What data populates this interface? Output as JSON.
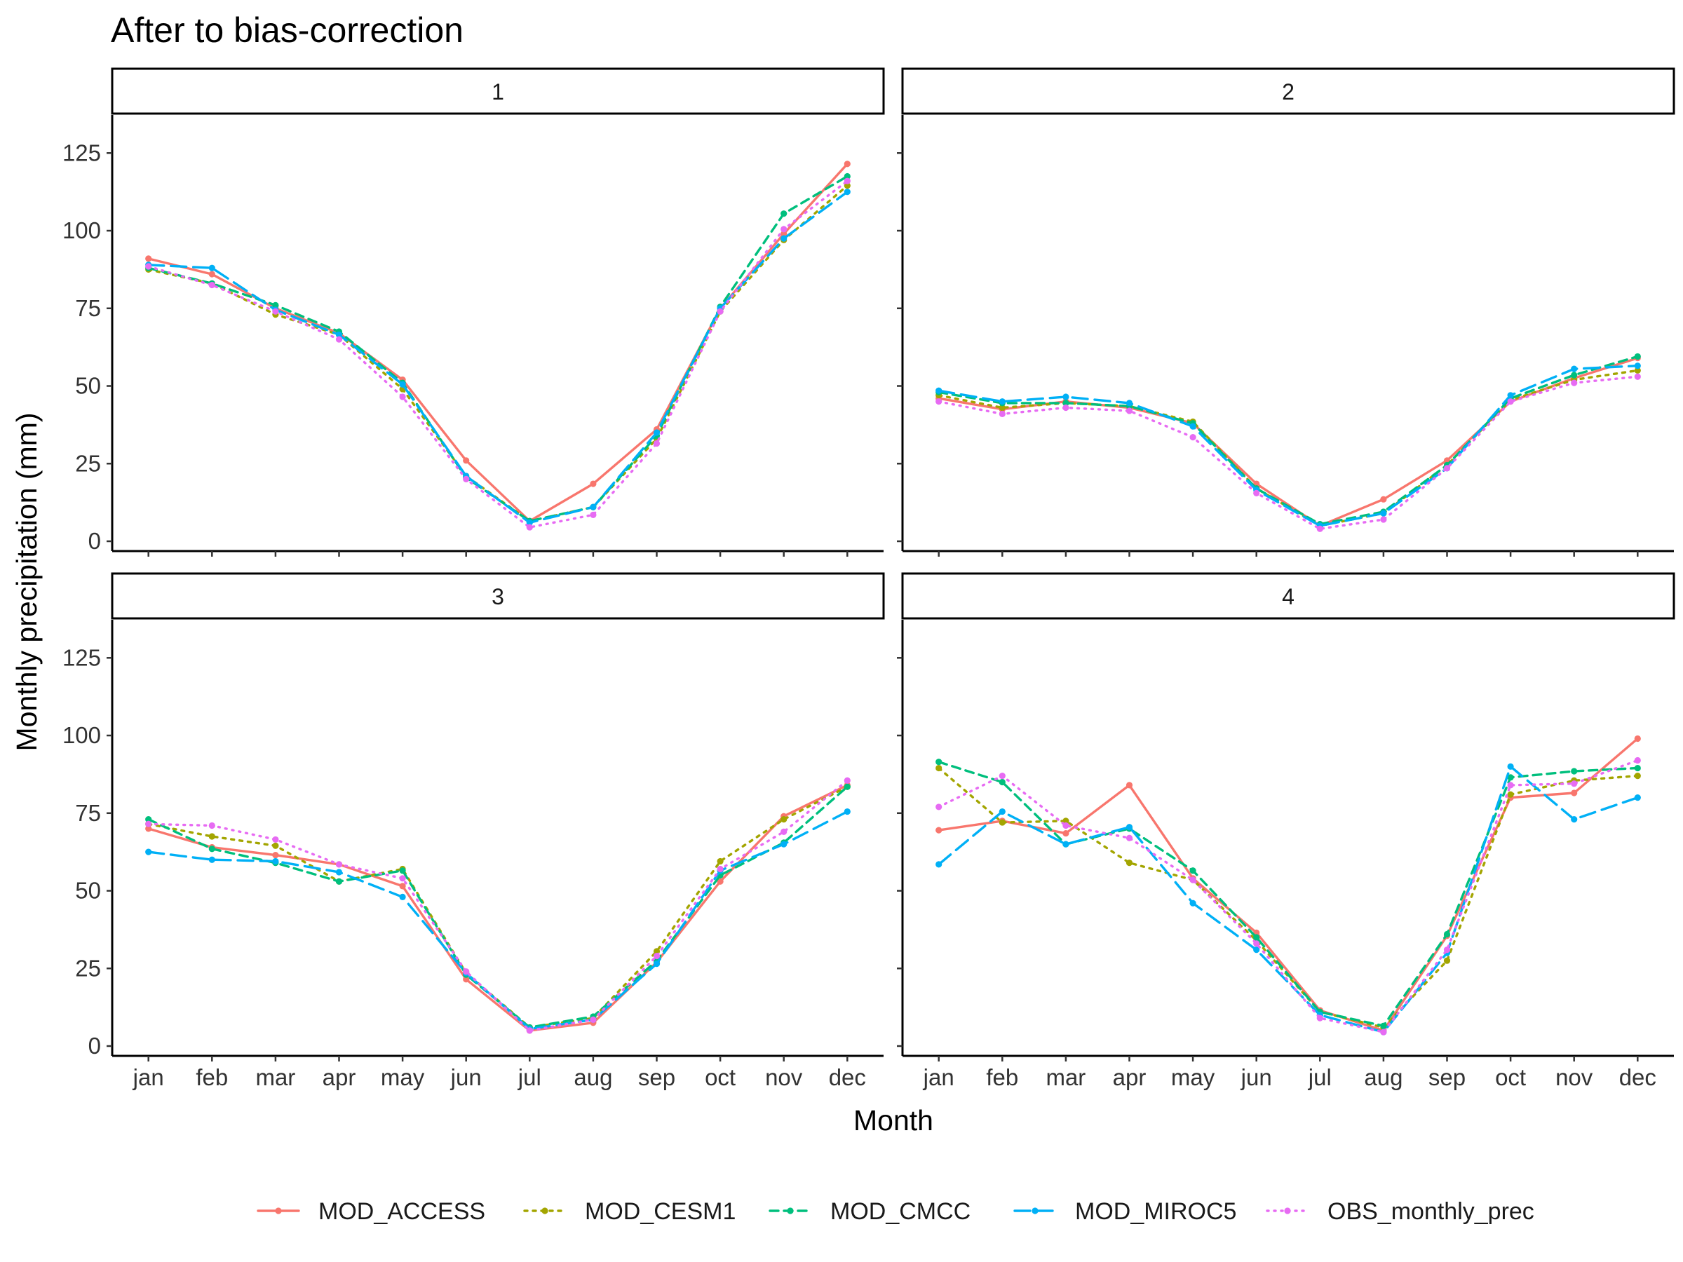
{
  "chart_data": {
    "type": "line",
    "title": "After to bias-correction",
    "xlabel": "Month",
    "ylabel": "Monthly precipitation (mm)",
    "ylim": [
      0,
      135
    ],
    "yticks": [
      0,
      25,
      50,
      75,
      100,
      125
    ],
    "categories": [
      "jan",
      "feb",
      "mar",
      "apr",
      "may",
      "jun",
      "jul",
      "aug",
      "sep",
      "oct",
      "nov",
      "dec"
    ],
    "legend_position": "bottom",
    "grid": false,
    "series_styles": [
      {
        "name": "MOD_ACCESS",
        "color": "#F8766D",
        "dash": "solid"
      },
      {
        "name": "MOD_CESM1",
        "color": "#A3A500",
        "dash": "dotted"
      },
      {
        "name": "MOD_CMCC",
        "color": "#00BF7D",
        "dash": "dashed"
      },
      {
        "name": "MOD_MIROC5",
        "color": "#00B0F6",
        "dash": "longdash"
      },
      {
        "name": "OBS_monthly_prec",
        "color": "#E76BF3",
        "dash": "dotted-fine"
      }
    ],
    "panels": [
      {
        "label": "1",
        "series": [
          {
            "name": "MOD_ACCESS",
            "values": [
              91,
              86,
              75,
              67,
              52,
              26,
              6.5,
              18.5,
              36,
              75,
              99,
              121.5
            ]
          },
          {
            "name": "MOD_CESM1",
            "values": [
              87.5,
              83,
              73,
              66.5,
              49,
              21,
              6.5,
              11,
              33,
              74,
              97,
              114.5
            ]
          },
          {
            "name": "MOD_CMCC",
            "values": [
              88,
              83,
              76,
              67.5,
              51,
              20.5,
              6.5,
              11,
              34,
              75.5,
              105.5,
              117.5
            ]
          },
          {
            "name": "MOD_MIROC5",
            "values": [
              89,
              88,
              74.5,
              66.5,
              50.5,
              21,
              6,
              11,
              35,
              75,
              97.5,
              112.5
            ]
          },
          {
            "name": "OBS_monthly_prec",
            "values": [
              88.5,
              82.5,
              74,
              65,
              46.5,
              20,
              4.5,
              8.5,
              31.5,
              74,
              100.5,
              116
            ]
          }
        ]
      },
      {
        "label": "2",
        "series": [
          {
            "name": "MOD_ACCESS",
            "values": [
              46,
              42.5,
              45,
              43,
              38,
              18.5,
              5,
              13.5,
              26,
              45,
              52.5,
              59
            ]
          },
          {
            "name": "MOD_CESM1",
            "values": [
              47,
              43,
              44.5,
              43.5,
              38.5,
              17,
              5,
              9,
              24.5,
              45.5,
              52,
              55
            ]
          },
          {
            "name": "MOD_CMCC",
            "values": [
              48,
              44.5,
              44.5,
              43.5,
              38,
              17,
              5.5,
              9.5,
              24.5,
              46,
              53.5,
              59.5
            ]
          },
          {
            "name": "MOD_MIROC5",
            "values": [
              48.5,
              45,
              46.5,
              44.5,
              37,
              16.5,
              5,
              9,
              23.5,
              47,
              55.5,
              56.5
            ]
          },
          {
            "name": "OBS_monthly_prec",
            "values": [
              45,
              41,
              43,
              42,
              33.5,
              15.5,
              4,
              7,
              23.5,
              45,
              51,
              53
            ]
          }
        ]
      },
      {
        "label": "3",
        "series": [
          {
            "name": "MOD_ACCESS",
            "values": [
              70,
              64,
              61.5,
              58.5,
              51.5,
              21.5,
              5,
              7.5,
              27,
              53,
              74,
              84
            ]
          },
          {
            "name": "MOD_CESM1",
            "values": [
              71.5,
              67.5,
              64.5,
              53,
              57,
              23.5,
              6,
              9,
              30.5,
              59.5,
              73,
              83.5
            ]
          },
          {
            "name": "MOD_CMCC",
            "values": [
              73,
              63.5,
              59,
              53,
              56.5,
              23,
              6,
              9.5,
              27.5,
              55,
              65.5,
              83.5
            ]
          },
          {
            "name": "MOD_MIROC5",
            "values": [
              62.5,
              60,
              59.5,
              56,
              48,
              23.5,
              5.5,
              8.5,
              26.5,
              56.5,
              65,
              75.5
            ]
          },
          {
            "name": "OBS_monthly_prec",
            "values": [
              71.5,
              71,
              66.5,
              58.5,
              54,
              24,
              5,
              8.5,
              29,
              57,
              69,
              85.5
            ]
          }
        ]
      },
      {
        "label": "4",
        "series": [
          {
            "name": "MOD_ACCESS",
            "values": [
              69.5,
              72.5,
              68.5,
              84,
              54,
              36.5,
              11.5,
              5,
              35.5,
              80,
              81.5,
              99
            ]
          },
          {
            "name": "MOD_CESM1",
            "values": [
              89.5,
              72,
              72.5,
              59,
              53.5,
              34,
              11,
              6,
              27.5,
              81,
              85.5,
              87
            ]
          },
          {
            "name": "MOD_CMCC",
            "values": [
              91.5,
              85,
              65,
              70,
              56.5,
              35,
              11,
              6.5,
              36,
              86.5,
              88.5,
              89.5
            ]
          },
          {
            "name": "MOD_MIROC5",
            "values": [
              58.5,
              75.5,
              65,
              70.5,
              46,
              31,
              10,
              4.5,
              30,
              90,
              73,
              80
            ]
          },
          {
            "name": "OBS_monthly_prec",
            "values": [
              77,
              87,
              71,
              67,
              53.5,
              33,
              9,
              4.5,
              31,
              84,
              84.5,
              92
            ]
          }
        ]
      }
    ]
  }
}
